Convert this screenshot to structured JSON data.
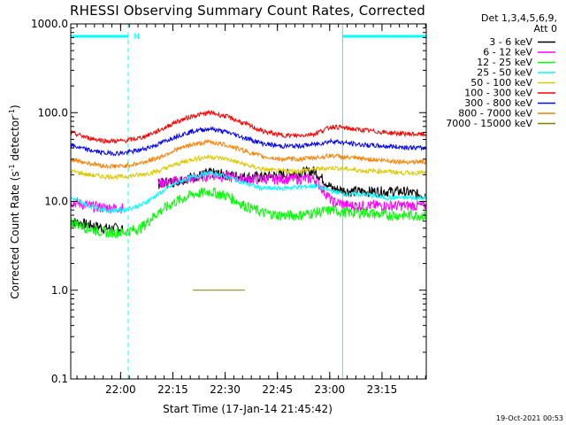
{
  "chart_data": {
    "type": "line",
    "title": "RHESSI Observing Summary Count Rates, Corrected",
    "xlabel": "Start Time (17-Jan-14 21:45:42)",
    "ylabel": "Corrected Count Rate (s-1 detector-1)",
    "ylabel_parts": {
      "base": "Corrected Count Rate (s",
      "sup1": "-1",
      "mid": " detector",
      "sup2": "-1",
      "end": ")"
    },
    "yscale": "log",
    "ylim": [
      0.1,
      1000
    ],
    "xlim_minutes": [
      0,
      102
    ],
    "x_ticks": [
      {
        "label": "22:00",
        "minutes": 14.3
      },
      {
        "label": "22:15",
        "minutes": 29.3
      },
      {
        "label": "22:30",
        "minutes": 44.3
      },
      {
        "label": "22:45",
        "minutes": 59.3
      },
      {
        "label": "23:00",
        "minutes": 74.3
      },
      {
        "label": "23:15",
        "minutes": 89.3
      }
    ],
    "y_ticks": [
      {
        "label": "1000.0",
        "value": 1000
      },
      {
        "label": "100.0",
        "value": 100
      },
      {
        "label": "10.0",
        "value": 10
      },
      {
        "label": "1.0",
        "value": 1
      },
      {
        "label": "0.1",
        "value": 0.1
      }
    ],
    "legend_header": [
      "Det 1,3,4,5,6,9,",
      "Att 0"
    ],
    "series": [
      {
        "name": "3 - 6 keV",
        "color": "#000000"
      },
      {
        "name": "6 - 12 keV",
        "color": "#ff00ff"
      },
      {
        "name": "12 - 25 keV",
        "color": "#00ff00"
      },
      {
        "name": "25 - 50 keV",
        "color": "#00ffff"
      },
      {
        "name": "50 - 100 keV",
        "color": "#dcc800"
      },
      {
        "name": "100 - 300 keV",
        "color": "#ff0000"
      },
      {
        "name": "300 - 800 keV",
        "color": "#0000ff"
      },
      {
        "name": "800 - 7000 keV",
        "color": "#ff8000"
      },
      {
        "name": "7000 - 15000 keV",
        "color": "#808000"
      }
    ],
    "series_data": {
      "x_minutes": [
        0,
        5,
        10,
        15,
        20,
        25,
        30,
        35,
        40,
        45,
        50,
        55,
        60,
        65,
        70,
        75,
        80,
        85,
        90,
        95,
        100
      ],
      "3 - 6 keV": [
        6,
        5.5,
        5,
        5,
        null,
        16,
        17,
        19,
        21,
        20,
        19,
        19,
        20,
        21,
        22,
        14,
        13,
        13,
        13,
        13,
        12
      ],
      "6 - 12 keV": [
        10,
        9,
        8.5,
        8.5,
        null,
        16,
        17,
        18,
        20,
        19,
        18,
        18,
        18,
        18,
        18,
        10,
        9,
        9,
        9,
        9,
        9
      ],
      "12 - 25 keV": [
        6,
        5,
        4.5,
        4.5,
        5,
        7.5,
        10,
        12,
        13,
        11.5,
        9,
        7.5,
        7,
        7,
        7.5,
        8,
        7.5,
        7.5,
        7,
        7,
        7
      ],
      "25 - 50 keV": [
        11,
        9,
        8,
        8,
        9,
        12,
        16,
        19,
        21,
        19,
        16,
        14,
        14,
        14.5,
        15,
        13,
        12,
        12,
        11,
        11,
        11
      ],
      "50 - 100 keV": [
        22,
        20,
        19,
        19,
        20,
        22,
        26,
        30,
        32,
        30,
        26,
        23,
        22,
        22,
        23,
        24,
        23,
        22,
        22,
        21,
        21
      ],
      "100 - 300 keV": [
        60,
        52,
        48,
        48,
        52,
        62,
        78,
        92,
        100,
        90,
        75,
        62,
        56,
        55,
        58,
        70,
        66,
        63,
        60,
        58,
        57
      ],
      "300 - 800 keV": [
        43,
        38,
        35,
        35,
        38,
        44,
        54,
        62,
        66,
        60,
        52,
        45,
        42,
        42,
        44,
        48,
        45,
        43,
        42,
        41,
        40
      ],
      "800 - 7000 keV": [
        30,
        27,
        25,
        25,
        27,
        31,
        38,
        44,
        47,
        43,
        37,
        32,
        30,
        30,
        31,
        33,
        31,
        30,
        29,
        28,
        28
      ],
      "7000 - 15000 keV": [
        null,
        null,
        null,
        null,
        null,
        null,
        null,
        1,
        1,
        1,
        1,
        null,
        null,
        null,
        null,
        null,
        null,
        null,
        null,
        null,
        null
      ]
    },
    "night_intervals_minutes": [
      [
        0,
        16.5
      ],
      [
        78,
        102
      ]
    ],
    "flag_label": "N",
    "timestamp": "19-Oct-2021 00:53"
  }
}
